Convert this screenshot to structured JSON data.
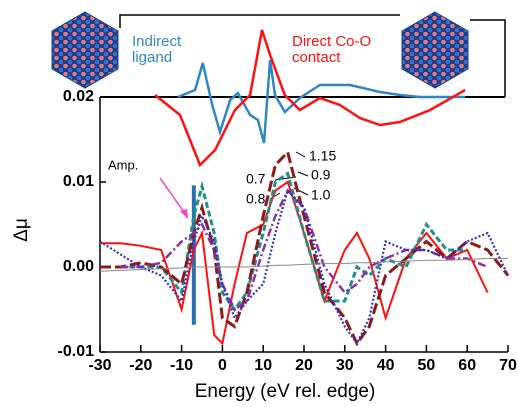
{
  "chart_data": [
    {
      "type": "line",
      "xlabel": "Energy (eV rel. edge)",
      "ylabel": "Δμ",
      "x": [
        -30,
        -25,
        -20,
        -15,
        -10,
        -7,
        -5,
        -2,
        0,
        3,
        6,
        10,
        13,
        16,
        20,
        25,
        30,
        33,
        36,
        40,
        45,
        50,
        55,
        60,
        65,
        70
      ],
      "series": [
        {
          "color": "#ff1010",
          "style": "solid",
          "values": [
            0.0028,
            0.0028,
            0.0025,
            0.002,
            -0.005,
            0.002,
            0.004,
            -0.008,
            -0.009,
            -0.002,
            0.004,
            0.005,
            0.009,
            0.01,
            0.004,
            -0.004,
            0.002,
            0.004,
            0.001,
            -0.006,
            0.001,
            0.004,
            0.001,
            0.002,
            -0.003,
            null
          ]
        },
        {
          "color": "#1f8f8a",
          "style": "dashed",
          "values": [
            null,
            0.0,
            0.0,
            0.0,
            -0.003,
            0.006,
            0.0095,
            0.004,
            -0.003,
            -0.005,
            -0.003,
            0.004,
            0.01,
            0.011,
            0.004,
            -0.004,
            -0.004,
            0.0,
            -0.001,
            0.001,
            0.0,
            0.005,
            0.002,
            0.002,
            null,
            null
          ]
        },
        {
          "color": "#8b1a1a",
          "style": "long-dashed",
          "values": [
            0.0,
            0.0,
            0.0005,
            0.0,
            -0.002,
            0.004,
            0.007,
            0.002,
            -0.006,
            -0.007,
            -0.003,
            0.006,
            0.012,
            0.0135,
            0.006,
            -0.003,
            -0.006,
            -0.009,
            -0.007,
            -0.001,
            0.001,
            0.003,
            0.001,
            0.003,
            0.002,
            -0.001
          ]
        },
        {
          "color": "#8b2fa8",
          "style": "dash-dot",
          "values": [
            null,
            0.0,
            0.0,
            0.0005,
            0.003,
            0.004,
            0.005,
            0.002,
            -0.002,
            -0.005,
            -0.004,
            0.002,
            0.006,
            0.009,
            0.007,
            0.0,
            -0.003,
            -0.002,
            0.0,
            0.001,
            0.002,
            0.002,
            0.001,
            0.001,
            0.0,
            null
          ]
        },
        {
          "color": "#3030c0",
          "style": "dotted",
          "values": [
            0.003,
            0.0015,
            0.0,
            -0.001,
            -0.004,
            0.003,
            0.006,
            0.003,
            -0.002,
            -0.006,
            -0.004,
            -0.002,
            0.004,
            0.009,
            0.007,
            -0.002,
            -0.007,
            -0.009,
            -0.006,
            0.003,
            0.002,
            0.002,
            0.001,
            0.003,
            0.004,
            -0.001
          ]
        },
        {
          "color": "#888888",
          "style": "thin",
          "values": [
            -0.0005,
            -0.0004,
            -0.0003,
            -0.0002,
            -0.0001,
            0,
            0,
            0,
            0,
            0,
            0,
            0.0001,
            0.0002,
            0.0002,
            0.0003,
            0.0004,
            0.0004,
            0.0005,
            0.0005,
            0.0006,
            0.0007,
            0.0008,
            0.0008,
            0.0009,
            0.001,
            0.001
          ]
        }
      ],
      "amp_bar": {
        "x": -7,
        "y": [
          -0.0068,
          0.0096
        ],
        "color": "#2a6db0"
      },
      "annotations": [
        "Amp.",
        "0.7",
        "0.8",
        "1.15",
        "0.9",
        "1.0"
      ],
      "xlim": [
        -30,
        70
      ],
      "xticks": [
        -30,
        -20,
        -10,
        0,
        10,
        20,
        30,
        40,
        50,
        60,
        70
      ],
      "ylim": [
        -0.01,
        0.02
      ],
      "yticks": [
        -0.01,
        {
          "value": 0,
          "label": "0.00"
        },
        0.01,
        0.02
      ]
    },
    {
      "type": "line",
      "xlim": [
        -30,
        70
      ],
      "ylim": [
        -70,
        80
      ],
      "series": [
        {
          "name": "Indirect ligand",
          "color": "#2f86c6",
          "x": [
            -10.9,
            -6.7,
            -4.8,
            -2.5,
            -0.6,
            1.9,
            3.8,
            6.8,
            8.7,
            10.2,
            11.7,
            12.9,
            15.3,
            19,
            23.9,
            31.3,
            38.6,
            43.5,
            48.4,
            59.5
          ],
          "values": [
            0,
            7,
            34,
            -8,
            -35,
            -3,
            4,
            -18,
            -23,
            -46,
            37,
            2,
            -15,
            -1,
            12,
            12,
            5,
            2,
            0,
            0
          ]
        },
        {
          "name": "Direct Co-O contact",
          "color": "#ff1010",
          "x": [
            -16.5,
            -10.4,
            -5.5,
            -1.8,
            3.1,
            6.8,
            9.7,
            11.7,
            15.3,
            19,
            23.9,
            28.8,
            33.7,
            38.6,
            43.5,
            50.9,
            59.5
          ],
          "values": [
            2,
            -18,
            -68,
            -53,
            -13,
            2,
            67,
            42,
            2,
            -13,
            -1,
            -8,
            -21,
            -28,
            -25,
            -13,
            7
          ]
        }
      ]
    }
  ]
}
